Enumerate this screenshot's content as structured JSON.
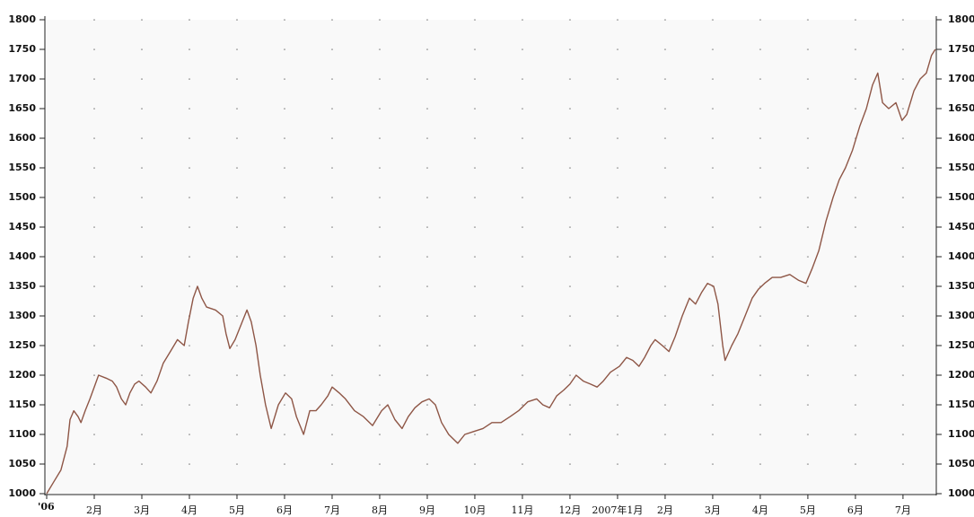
{
  "chart_data": {
    "type": "line",
    "color": "#8e5646",
    "grid": true,
    "x": [
      0,
      0.15,
      0.3,
      0.43,
      0.49,
      0.57,
      0.66,
      0.72,
      0.81,
      0.91,
      1.0,
      1.09,
      1.25,
      1.38,
      1.47,
      1.57,
      1.66,
      1.75,
      1.85,
      1.94,
      2.08,
      2.19,
      2.32,
      2.45,
      2.6,
      2.75,
      2.89,
      2.98,
      3.08,
      3.17,
      3.26,
      3.36,
      3.55,
      3.7,
      3.77,
      3.85,
      3.96,
      4.11,
      4.21,
      4.3,
      4.4,
      4.49,
      4.6,
      4.72,
      4.87,
      5.02,
      5.15,
      5.25,
      5.4,
      5.53,
      5.66,
      5.77,
      5.91,
      6.0,
      6.15,
      6.28,
      6.47,
      6.66,
      6.85,
      7.04,
      7.17,
      7.32,
      7.47,
      7.6,
      7.74,
      7.89,
      8.04,
      8.17,
      8.3,
      8.45,
      8.64,
      8.79,
      8.98,
      9.17,
      9.36,
      9.55,
      9.74,
      9.92,
      10.11,
      10.3,
      10.43,
      10.57,
      10.72,
      10.87,
      11.0,
      11.13,
      11.28,
      11.43,
      11.57,
      11.7,
      11.85,
      12.04,
      12.19,
      12.32,
      12.45,
      12.57,
      12.7,
      12.79,
      12.94,
      13.08,
      13.21,
      13.36,
      13.51,
      13.64,
      13.77,
      13.89,
      14.02,
      14.11,
      14.21,
      14.26,
      14.4,
      14.53,
      14.68,
      14.83,
      14.96,
      15.09,
      15.25,
      15.43,
      15.62,
      15.81,
      15.96,
      16.09,
      16.23,
      16.38,
      16.53,
      16.66,
      16.79,
      16.94,
      17.09,
      17.23,
      17.36,
      17.47,
      17.57,
      17.7,
      17.85,
      17.98,
      18.08,
      18.23,
      18.36,
      18.49,
      18.6,
      18.68
    ],
    "values": [
      1000,
      1020,
      1040,
      1080,
      1125,
      1140,
      1130,
      1120,
      1140,
      1160,
      1180,
      1200,
      1195,
      1190,
      1180,
      1160,
      1150,
      1170,
      1185,
      1190,
      1180,
      1170,
      1190,
      1220,
      1240,
      1260,
      1250,
      1290,
      1330,
      1350,
      1330,
      1315,
      1310,
      1300,
      1270,
      1245,
      1260,
      1290,
      1310,
      1290,
      1250,
      1200,
      1150,
      1110,
      1150,
      1170,
      1160,
      1130,
      1100,
      1140,
      1140,
      1150,
      1165,
      1180,
      1170,
      1160,
      1140,
      1130,
      1115,
      1140,
      1150,
      1125,
      1110,
      1130,
      1145,
      1155,
      1160,
      1150,
      1120,
      1100,
      1085,
      1100,
      1105,
      1110,
      1120,
      1120,
      1130,
      1140,
      1155,
      1160,
      1150,
      1145,
      1165,
      1175,
      1185,
      1200,
      1190,
      1185,
      1180,
      1190,
      1205,
      1215,
      1230,
      1225,
      1215,
      1230,
      1250,
      1260,
      1250,
      1240,
      1265,
      1300,
      1330,
      1320,
      1340,
      1355,
      1350,
      1320,
      1250,
      1225,
      1250,
      1270,
      1300,
      1330,
      1345,
      1355,
      1365,
      1365,
      1370,
      1360,
      1355,
      1380,
      1410,
      1460,
      1500,
      1530,
      1550,
      1580,
      1620,
      1650,
      1690,
      1710,
      1660,
      1650,
      1660,
      1630,
      1640,
      1680,
      1700,
      1710,
      1740,
      1750
    ],
    "xlim": [
      0,
      18.7
    ],
    "xticks": [
      {
        "value": 0,
        "label": "'06"
      },
      {
        "value": 1,
        "label": "2月"
      },
      {
        "value": 2,
        "label": "3月"
      },
      {
        "value": 3,
        "label": "4月"
      },
      {
        "value": 4,
        "label": "5月"
      },
      {
        "value": 5,
        "label": "6月"
      },
      {
        "value": 6,
        "label": "7月"
      },
      {
        "value": 7,
        "label": "8月"
      },
      {
        "value": 8,
        "label": "9月"
      },
      {
        "value": 9,
        "label": "10月"
      },
      {
        "value": 10,
        "label": "11月"
      },
      {
        "value": 11,
        "label": "12月"
      },
      {
        "value": 12,
        "label": "2007年1月"
      },
      {
        "value": 13,
        "label": "2月"
      },
      {
        "value": 14,
        "label": "3月"
      },
      {
        "value": 15,
        "label": "4月"
      },
      {
        "value": 16,
        "label": "5月"
      },
      {
        "value": 17,
        "label": "6月"
      },
      {
        "value": 18,
        "label": "7月"
      }
    ],
    "ylim": [
      1000,
      1800
    ],
    "yticks": [
      1000,
      1050,
      1100,
      1150,
      1200,
      1250,
      1300,
      1350,
      1400,
      1450,
      1500,
      1550,
      1600,
      1650,
      1700,
      1750,
      1800
    ]
  }
}
